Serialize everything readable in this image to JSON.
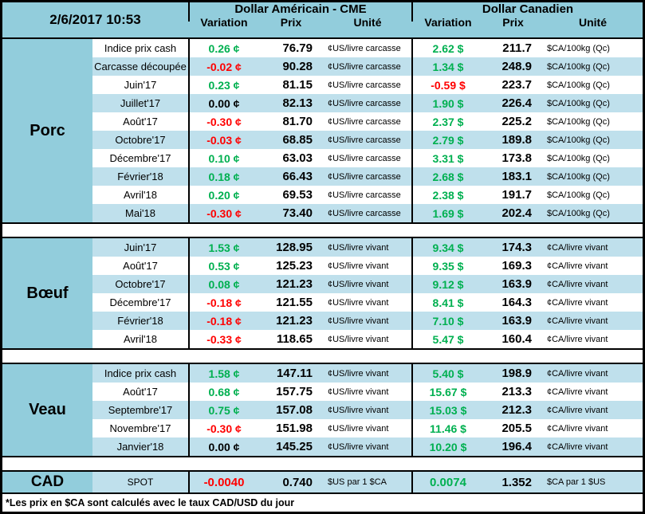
{
  "meta": {
    "timestamp": "2/6/2017 10:53"
  },
  "columns": {
    "usd_header": "Dollar Américain - CME",
    "cad_header": "Dollar Canadien",
    "variation": "Variation",
    "prix": "Prix",
    "unite": "Unité"
  },
  "colors": {
    "accent_teal": "#92CDDC",
    "row_alt_blue": "#BFE0EC",
    "positive": "#00B050",
    "negative": "#FF0000",
    "neutral": "#000000"
  },
  "sections": [
    {
      "id": "porc",
      "label": "Porc",
      "first_row_shaded": false,
      "rows": [
        {
          "label": "Indice prix cash",
          "us_var": "0.26 ¢",
          "us_trend": "up",
          "us_prix": "76.79",
          "us_unit": "¢US/livre carcasse",
          "ca_var": "2.62 $",
          "ca_trend": "up",
          "ca_prix": "211.7",
          "ca_unit": "$CA/100kg (Qc)"
        },
        {
          "label": "Carcasse découpée",
          "us_var": "-0.02 ¢",
          "us_trend": "down",
          "us_prix": "90.28",
          "us_unit": "¢US/livre carcasse",
          "ca_var": "1.34 $",
          "ca_trend": "up",
          "ca_prix": "248.9",
          "ca_unit": "$CA/100kg (Qc)"
        },
        {
          "label": "Juin'17",
          "us_var": "0.23 ¢",
          "us_trend": "up",
          "us_prix": "81.15",
          "us_unit": "¢US/livre carcasse",
          "ca_var": "-0.59 $",
          "ca_trend": "down",
          "ca_prix": "223.7",
          "ca_unit": "$CA/100kg (Qc)"
        },
        {
          "label": "Juillet'17",
          "us_var": "0.00 ¢",
          "us_trend": "flat",
          "us_prix": "82.13",
          "us_unit": "¢US/livre carcasse",
          "ca_var": "1.90 $",
          "ca_trend": "up",
          "ca_prix": "226.4",
          "ca_unit": "$CA/100kg (Qc)"
        },
        {
          "label": "Août'17",
          "us_var": "-0.30 ¢",
          "us_trend": "down",
          "us_prix": "81.70",
          "us_unit": "¢US/livre carcasse",
          "ca_var": "2.37 $",
          "ca_trend": "up",
          "ca_prix": "225.2",
          "ca_unit": "$CA/100kg (Qc)"
        },
        {
          "label": "Octobre'17",
          "us_var": "-0.03 ¢",
          "us_trend": "down",
          "us_prix": "68.85",
          "us_unit": "¢US/livre carcasse",
          "ca_var": "2.79 $",
          "ca_trend": "up",
          "ca_prix": "189.8",
          "ca_unit": "$CA/100kg (Qc)"
        },
        {
          "label": "Décembre'17",
          "us_var": "0.10 ¢",
          "us_trend": "up",
          "us_prix": "63.03",
          "us_unit": "¢US/livre carcasse",
          "ca_var": "3.31 $",
          "ca_trend": "up",
          "ca_prix": "173.8",
          "ca_unit": "$CA/100kg (Qc)"
        },
        {
          "label": "Février'18",
          "us_var": "0.18 ¢",
          "us_trend": "up",
          "us_prix": "66.43",
          "us_unit": "¢US/livre carcasse",
          "ca_var": "2.68 $",
          "ca_trend": "up",
          "ca_prix": "183.1",
          "ca_unit": "$CA/100kg (Qc)"
        },
        {
          "label": "Avril'18",
          "us_var": "0.20 ¢",
          "us_trend": "up",
          "us_prix": "69.53",
          "us_unit": "¢US/livre carcasse",
          "ca_var": "2.38 $",
          "ca_trend": "up",
          "ca_prix": "191.7",
          "ca_unit": "$CA/100kg (Qc)"
        },
        {
          "label": "Mai'18",
          "us_var": "-0.30 ¢",
          "us_trend": "down",
          "us_prix": "73.40",
          "us_unit": "¢US/livre carcasse",
          "ca_var": "1.69 $",
          "ca_trend": "up",
          "ca_prix": "202.4",
          "ca_unit": "$CA/100kg (Qc)"
        }
      ]
    },
    {
      "id": "boeuf",
      "label": "Bœuf",
      "first_row_shaded": true,
      "rows": [
        {
          "label": "Juin'17",
          "us_var": "1.53 ¢",
          "us_trend": "up",
          "us_prix": "128.95",
          "us_unit": "¢US/livre vivant",
          "ca_var": "9.34 $",
          "ca_trend": "up",
          "ca_prix": "174.3",
          "ca_unit": "¢CA/livre vivant"
        },
        {
          "label": "Août'17",
          "us_var": "0.53 ¢",
          "us_trend": "up",
          "us_prix": "125.23",
          "us_unit": "¢US/livre vivant",
          "ca_var": "9.35 $",
          "ca_trend": "up",
          "ca_prix": "169.3",
          "ca_unit": "¢CA/livre vivant"
        },
        {
          "label": "Octobre'17",
          "us_var": "0.08 ¢",
          "us_trend": "up",
          "us_prix": "121.23",
          "us_unit": "¢US/livre vivant",
          "ca_var": "9.12 $",
          "ca_trend": "up",
          "ca_prix": "163.9",
          "ca_unit": "¢CA/livre vivant"
        },
        {
          "label": "Décembre'17",
          "us_var": "-0.18 ¢",
          "us_trend": "down",
          "us_prix": "121.55",
          "us_unit": "¢US/livre vivant",
          "ca_var": "8.41 $",
          "ca_trend": "up",
          "ca_prix": "164.3",
          "ca_unit": "¢CA/livre vivant"
        },
        {
          "label": "Février'18",
          "us_var": "-0.18 ¢",
          "us_trend": "down",
          "us_prix": "121.23",
          "us_unit": "¢US/livre vivant",
          "ca_var": "7.10 $",
          "ca_trend": "up",
          "ca_prix": "163.9",
          "ca_unit": "¢CA/livre vivant"
        },
        {
          "label": "Avril'18",
          "us_var": "-0.33 ¢",
          "us_trend": "down",
          "us_prix": "118.65",
          "us_unit": "¢US/livre vivant",
          "ca_var": "5.47 $",
          "ca_trend": "up",
          "ca_prix": "160.4",
          "ca_unit": "¢CA/livre vivant"
        }
      ]
    },
    {
      "id": "veau",
      "label": "Veau",
      "first_row_shaded": true,
      "rows": [
        {
          "label": "Indice prix cash",
          "us_var": "1.58 ¢",
          "us_trend": "up",
          "us_prix": "147.11",
          "us_unit": "¢US/livre vivant",
          "ca_var": "5.40 $",
          "ca_trend": "up",
          "ca_prix": "198.9",
          "ca_unit": "¢CA/livre vivant"
        },
        {
          "label": "Août'17",
          "us_var": "0.68 ¢",
          "us_trend": "up",
          "us_prix": "157.75",
          "us_unit": "¢US/livre vivant",
          "ca_var": "15.67 $",
          "ca_trend": "up",
          "ca_prix": "213.3",
          "ca_unit": "¢CA/livre vivant"
        },
        {
          "label": "Septembre'17",
          "us_var": "0.75 ¢",
          "us_trend": "up",
          "us_prix": "157.08",
          "us_unit": "¢US/livre vivant",
          "ca_var": "15.03 $",
          "ca_trend": "up",
          "ca_prix": "212.3",
          "ca_unit": "¢CA/livre vivant"
        },
        {
          "label": "Novembre'17",
          "us_var": "-0.30 ¢",
          "us_trend": "down",
          "us_prix": "151.98",
          "us_unit": "¢US/livre vivant",
          "ca_var": "11.46 $",
          "ca_trend": "up",
          "ca_prix": "205.5",
          "ca_unit": "¢CA/livre vivant"
        },
        {
          "label": "Janvier'18",
          "us_var": "0.00 ¢",
          "us_trend": "flat",
          "us_prix": "145.25",
          "us_unit": "¢US/livre vivant",
          "ca_var": "10.20 $",
          "ca_trend": "up",
          "ca_prix": "196.4",
          "ca_unit": "¢CA/livre vivant"
        }
      ]
    }
  ],
  "cad_spot": {
    "label": "CAD",
    "row_label": "SPOT",
    "us_var": "-0.0040",
    "us_trend": "down",
    "us_prix": "0.740",
    "us_unit": "$US par 1 $CA",
    "ca_var": "0.0074",
    "ca_trend": "up",
    "ca_prix": "1.352",
    "ca_unit": "$CA par 1 $US"
  },
  "footnote": "*Les  prix en $CA sont calculés avec le taux CAD/USD du jour"
}
